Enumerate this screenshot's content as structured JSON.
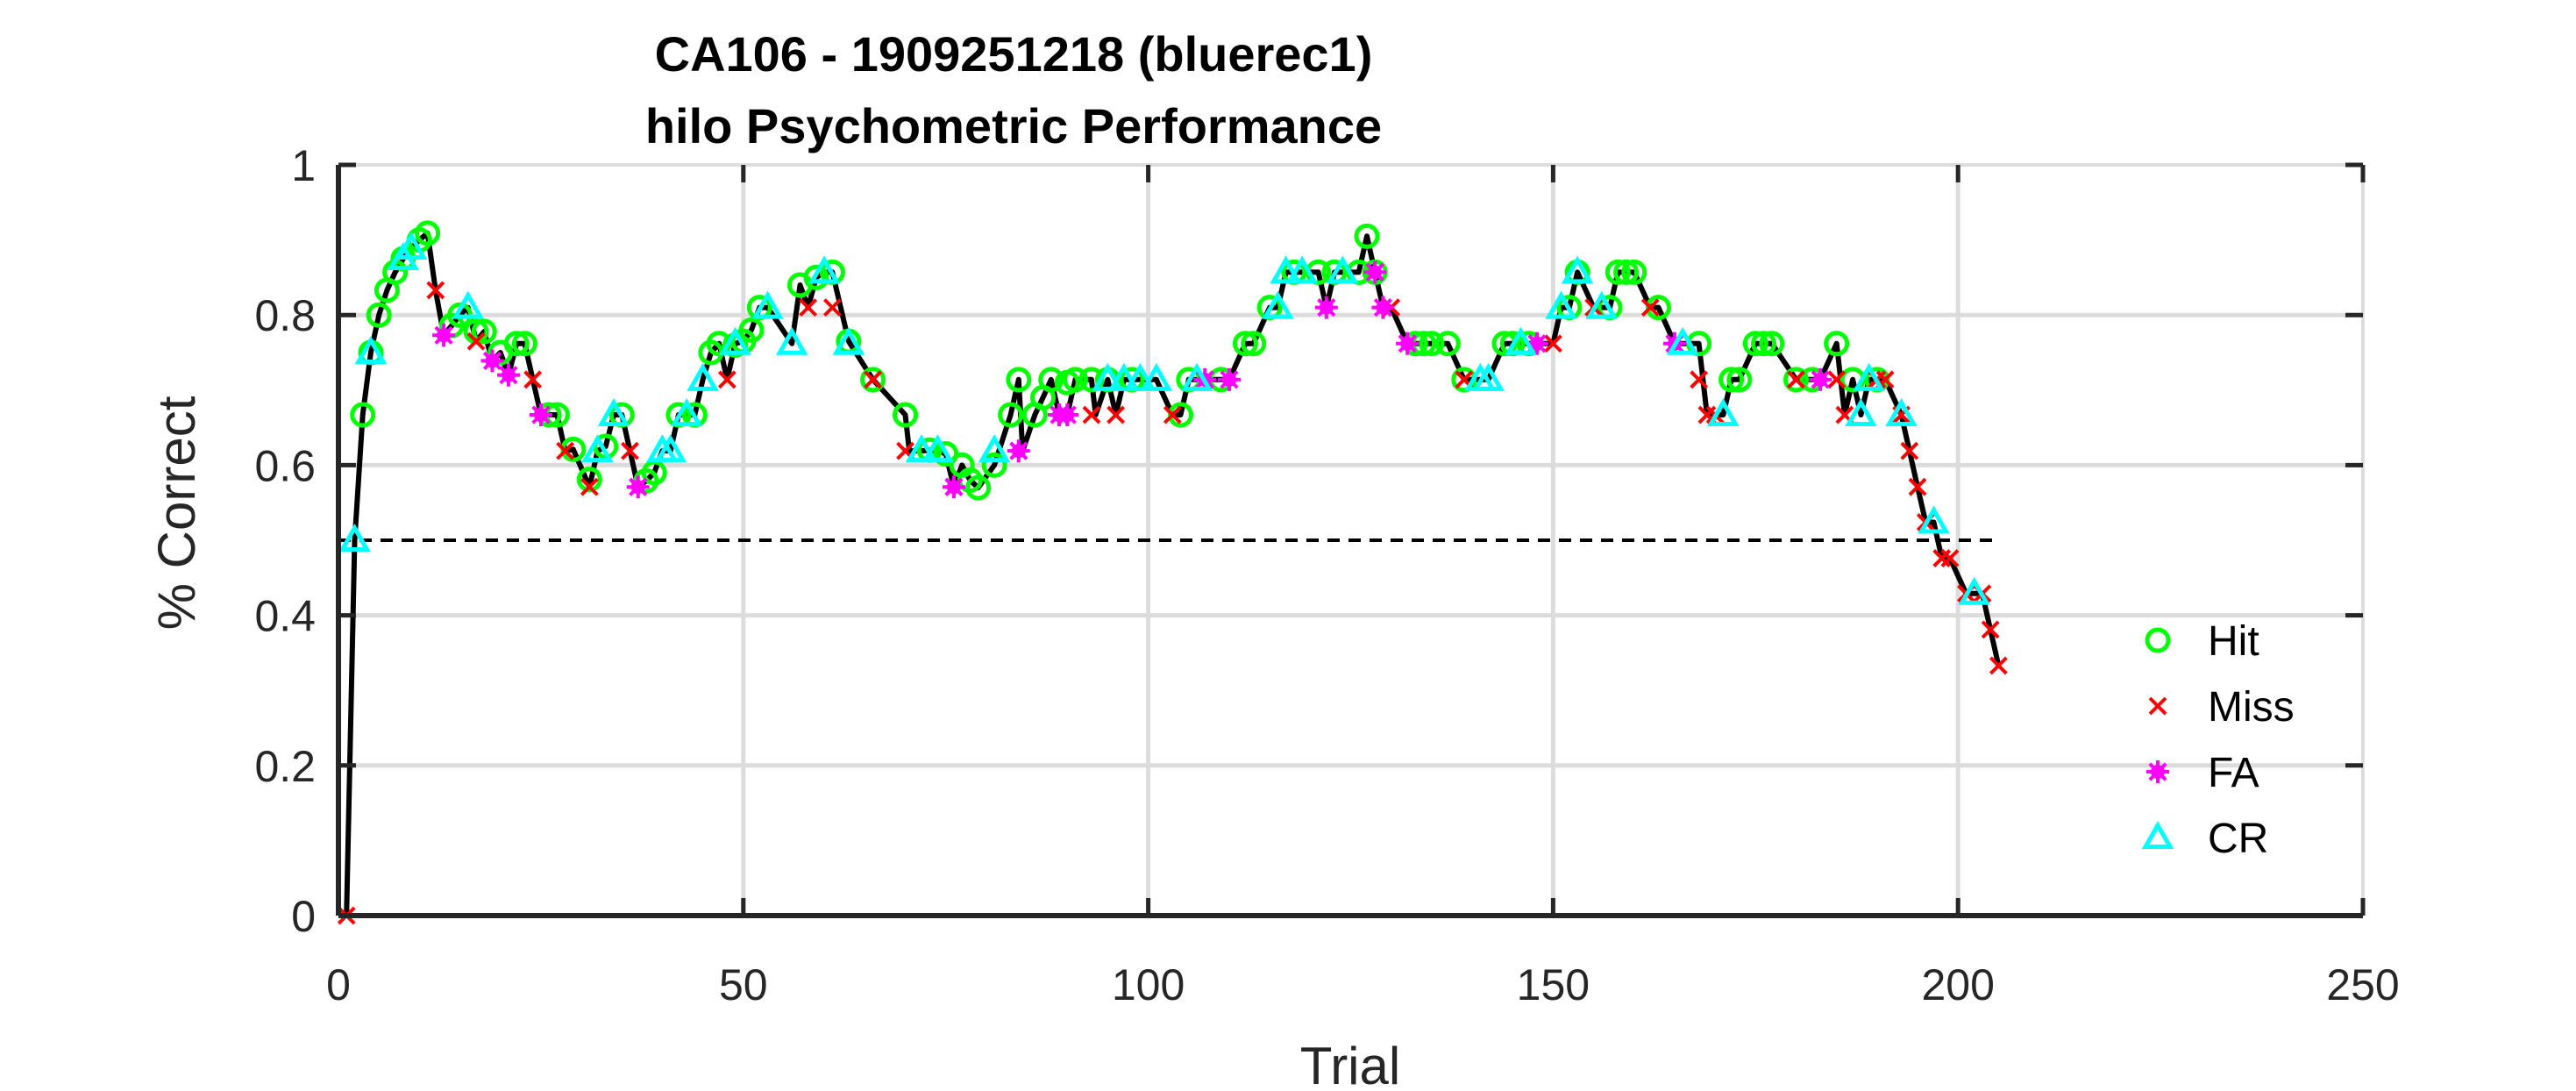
{
  "chart_data": {
    "type": "line",
    "title": "CA106 - 1909251218 (bluerec1)",
    "subtitle": "hilo Psychometric Performance",
    "xlabel": "Trial",
    "ylabel": "% Correct",
    "xlim": [
      0,
      250
    ],
    "ylim": [
      0,
      1
    ],
    "xticks": [
      "0",
      "50",
      "100",
      "150",
      "200",
      "250"
    ],
    "yticks": [
      "0",
      "0.2",
      "0.4",
      "0.6",
      "0.8",
      "1"
    ],
    "grid": true,
    "legend_position": "right",
    "reference_line": {
      "y": 0.5,
      "x_range": [
        0,
        205
      ],
      "style": "dashed"
    },
    "colors": {
      "line": "#000000",
      "Hit": "#00ff00",
      "Miss": "#ff0000",
      "FA": "#ff00ff",
      "CR": "#00ffff"
    },
    "legend": [
      {
        "name": "Hit",
        "marker": "circle"
      },
      {
        "name": "Miss",
        "marker": "x"
      },
      {
        "name": "FA",
        "marker": "star"
      },
      {
        "name": "CR",
        "marker": "triangle"
      }
    ],
    "series": [
      {
        "name": "Hit",
        "points": [
          [
            3,
            0.667
          ],
          [
            4,
            0.75
          ],
          [
            5,
            0.8
          ],
          [
            6,
            0.833
          ],
          [
            7,
            0.857
          ],
          [
            8,
            0.875
          ],
          [
            10,
            0.9
          ],
          [
            11,
            0.909
          ],
          [
            14,
            0.786
          ],
          [
            15,
            0.8
          ],
          [
            17,
            0.778
          ],
          [
            18,
            0.778
          ],
          [
            20,
            0.75
          ],
          [
            22,
            0.762
          ],
          [
            23,
            0.762
          ],
          [
            26,
            0.667
          ],
          [
            27,
            0.667
          ],
          [
            29,
            0.621
          ],
          [
            31,
            0.581
          ],
          [
            33,
            0.625
          ],
          [
            35,
            0.667
          ],
          [
            38,
            0.579
          ],
          [
            39,
            0.59
          ],
          [
            42,
            0.667
          ],
          [
            44,
            0.667
          ],
          [
            46,
            0.75
          ],
          [
            47,
            0.762
          ],
          [
            49,
            0.76
          ],
          [
            50,
            0.765
          ],
          [
            51,
            0.78
          ],
          [
            52,
            0.81
          ],
          [
            57,
            0.84
          ],
          [
            59,
            0.85
          ],
          [
            61,
            0.857
          ],
          [
            63,
            0.765
          ],
          [
            66,
            0.714
          ],
          [
            70,
            0.667
          ],
          [
            73,
            0.62
          ],
          [
            75,
            0.615
          ],
          [
            77,
            0.6
          ],
          [
            78,
            0.58
          ],
          [
            79,
            0.57
          ],
          [
            81,
            0.6
          ],
          [
            83,
            0.667
          ],
          [
            84,
            0.714
          ],
          [
            86,
            0.667
          ],
          [
            87,
            0.69
          ],
          [
            88,
            0.714
          ],
          [
            90,
            0.71
          ],
          [
            91,
            0.714
          ],
          [
            93,
            0.714
          ],
          [
            95,
            0.714
          ],
          [
            98,
            0.714
          ],
          [
            104,
            0.667
          ],
          [
            105,
            0.714
          ],
          [
            109,
            0.714
          ],
          [
            112,
            0.762
          ],
          [
            113,
            0.762
          ],
          [
            115,
            0.81
          ],
          [
            118,
            0.857
          ],
          [
            121,
            0.857
          ],
          [
            123,
            0.857
          ],
          [
            126,
            0.857
          ],
          [
            127,
            0.905
          ],
          [
            128,
            0.857
          ],
          [
            133,
            0.762
          ],
          [
            134,
            0.762
          ],
          [
            135,
            0.762
          ],
          [
            137,
            0.762
          ],
          [
            139,
            0.714
          ],
          [
            144,
            0.762
          ],
          [
            145,
            0.762
          ],
          [
            147,
            0.762
          ],
          [
            152,
            0.81
          ],
          [
            153,
            0.857
          ],
          [
            157,
            0.81
          ],
          [
            158,
            0.857
          ],
          [
            159,
            0.857
          ],
          [
            160,
            0.857
          ],
          [
            163,
            0.81
          ],
          [
            168,
            0.762
          ],
          [
            172,
            0.714
          ],
          [
            173,
            0.714
          ],
          [
            175,
            0.762
          ],
          [
            176,
            0.762
          ],
          [
            177,
            0.762
          ],
          [
            180,
            0.714
          ],
          [
            182,
            0.714
          ],
          [
            185,
            0.762
          ],
          [
            187,
            0.714
          ],
          [
            190,
            0.714
          ]
        ]
      },
      {
        "name": "Miss",
        "points": [
          [
            1,
            0.0
          ],
          [
            12,
            0.833
          ],
          [
            17,
            0.765
          ],
          [
            24,
            0.714
          ],
          [
            28,
            0.619
          ],
          [
            31,
            0.571
          ],
          [
            36,
            0.619
          ],
          [
            37,
            0.571
          ],
          [
            48,
            0.714
          ],
          [
            58,
            0.81
          ],
          [
            61,
            0.81
          ],
          [
            66,
            0.714
          ],
          [
            70,
            0.619
          ],
          [
            76,
            0.571
          ],
          [
            93,
            0.667
          ],
          [
            96,
            0.667
          ],
          [
            103,
            0.667
          ],
          [
            130,
            0.81
          ],
          [
            139,
            0.714
          ],
          [
            150,
            0.762
          ],
          [
            155,
            0.81
          ],
          [
            162,
            0.81
          ],
          [
            168,
            0.714
          ],
          [
            169,
            0.667
          ],
          [
            170,
            0.667
          ],
          [
            180,
            0.714
          ],
          [
            185,
            0.714
          ],
          [
            186,
            0.667
          ],
          [
            190,
            0.714
          ],
          [
            191,
            0.714
          ],
          [
            193,
            0.667
          ],
          [
            194,
            0.619
          ],
          [
            195,
            0.571
          ],
          [
            196,
            0.524
          ],
          [
            198,
            0.476
          ],
          [
            199,
            0.476
          ],
          [
            201,
            0.429
          ],
          [
            203,
            0.429
          ],
          [
            204,
            0.381
          ],
          [
            205,
            0.333
          ]
        ]
      },
      {
        "name": "FA",
        "points": [
          [
            13,
            0.773
          ],
          [
            19,
            0.739
          ],
          [
            21,
            0.72
          ],
          [
            25,
            0.667
          ],
          [
            37,
            0.571
          ],
          [
            76,
            0.571
          ],
          [
            84,
            0.619
          ],
          [
            89,
            0.667
          ],
          [
            90,
            0.667
          ],
          [
            107,
            0.714
          ],
          [
            110,
            0.714
          ],
          [
            122,
            0.81
          ],
          [
            128,
            0.857
          ],
          [
            129,
            0.81
          ],
          [
            132,
            0.762
          ],
          [
            148,
            0.762
          ],
          [
            165,
            0.762
          ],
          [
            183,
            0.714
          ]
        ]
      },
      {
        "name": "CR",
        "points": [
          [
            2,
            0.5
          ],
          [
            4,
            0.75
          ],
          [
            8,
            0.875
          ],
          [
            9,
            0.889
          ],
          [
            16,
            0.81
          ],
          [
            32,
            0.619
          ],
          [
            34,
            0.667
          ],
          [
            40,
            0.619
          ],
          [
            41,
            0.619
          ],
          [
            43,
            0.667
          ],
          [
            45,
            0.714
          ],
          [
            49,
            0.762
          ],
          [
            53,
            0.81
          ],
          [
            56,
            0.762
          ],
          [
            60,
            0.857
          ],
          [
            63,
            0.762
          ],
          [
            72,
            0.619
          ],
          [
            74,
            0.619
          ],
          [
            81,
            0.619
          ],
          [
            95,
            0.714
          ],
          [
            97,
            0.714
          ],
          [
            99,
            0.714
          ],
          [
            101,
            0.714
          ],
          [
            106,
            0.714
          ],
          [
            116,
            0.81
          ],
          [
            117,
            0.857
          ],
          [
            119,
            0.857
          ],
          [
            124,
            0.857
          ],
          [
            141,
            0.714
          ],
          [
            142,
            0.714
          ],
          [
            146,
            0.762
          ],
          [
            151,
            0.81
          ],
          [
            153,
            0.857
          ],
          [
            156,
            0.81
          ],
          [
            166,
            0.762
          ],
          [
            171,
            0.667
          ],
          [
            188,
            0.667
          ],
          [
            189,
            0.714
          ],
          [
            193,
            0.667
          ],
          [
            197,
            0.524
          ],
          [
            202,
            0.429
          ]
        ]
      }
    ],
    "line": [
      [
        1,
        0.0
      ],
      [
        2,
        0.5
      ],
      [
        3,
        0.667
      ],
      [
        4,
        0.75
      ],
      [
        5,
        0.8
      ],
      [
        6,
        0.833
      ],
      [
        7,
        0.857
      ],
      [
        8,
        0.875
      ],
      [
        9,
        0.889
      ],
      [
        10,
        0.9
      ],
      [
        11,
        0.909
      ],
      [
        12,
        0.833
      ],
      [
        13,
        0.773
      ],
      [
        14,
        0.786
      ],
      [
        15,
        0.8
      ],
      [
        16,
        0.81
      ],
      [
        17,
        0.765
      ],
      [
        18,
        0.778
      ],
      [
        19,
        0.739
      ],
      [
        20,
        0.75
      ],
      [
        21,
        0.72
      ],
      [
        22,
        0.762
      ],
      [
        23,
        0.762
      ],
      [
        24,
        0.714
      ],
      [
        25,
        0.667
      ],
      [
        26,
        0.667
      ],
      [
        27,
        0.667
      ],
      [
        28,
        0.619
      ],
      [
        29,
        0.621
      ],
      [
        31,
        0.571
      ],
      [
        32,
        0.619
      ],
      [
        33,
        0.625
      ],
      [
        34,
        0.667
      ],
      [
        35,
        0.667
      ],
      [
        36,
        0.619
      ],
      [
        37,
        0.571
      ],
      [
        38,
        0.579
      ],
      [
        39,
        0.59
      ],
      [
        40,
        0.619
      ],
      [
        41,
        0.619
      ],
      [
        42,
        0.667
      ],
      [
        43,
        0.667
      ],
      [
        44,
        0.667
      ],
      [
        45,
        0.714
      ],
      [
        46,
        0.75
      ],
      [
        47,
        0.762
      ],
      [
        48,
        0.714
      ],
      [
        49,
        0.762
      ],
      [
        50,
        0.765
      ],
      [
        51,
        0.78
      ],
      [
        52,
        0.81
      ],
      [
        53,
        0.81
      ],
      [
        56,
        0.762
      ],
      [
        57,
        0.84
      ],
      [
        58,
        0.81
      ],
      [
        59,
        0.85
      ],
      [
        60,
        0.857
      ],
      [
        61,
        0.857
      ],
      [
        63,
        0.765
      ],
      [
        66,
        0.714
      ],
      [
        70,
        0.667
      ],
      [
        70.5,
        0.619
      ],
      [
        72,
        0.619
      ],
      [
        73,
        0.62
      ],
      [
        74,
        0.619
      ],
      [
        75,
        0.615
      ],
      [
        76,
        0.571
      ],
      [
        77,
        0.6
      ],
      [
        78,
        0.58
      ],
      [
        79,
        0.57
      ],
      [
        81,
        0.6
      ],
      [
        83,
        0.667
      ],
      [
        84,
        0.714
      ],
      [
        84.5,
        0.619
      ],
      [
        86,
        0.667
      ],
      [
        87,
        0.69
      ],
      [
        88,
        0.714
      ],
      [
        89,
        0.667
      ],
      [
        90,
        0.667
      ],
      [
        91,
        0.714
      ],
      [
        93,
        0.714
      ],
      [
        93.5,
        0.667
      ],
      [
        95,
        0.714
      ],
      [
        96,
        0.667
      ],
      [
        97,
        0.714
      ],
      [
        98,
        0.714
      ],
      [
        99,
        0.714
      ],
      [
        101,
        0.714
      ],
      [
        103,
        0.667
      ],
      [
        104,
        0.667
      ],
      [
        105,
        0.714
      ],
      [
        106,
        0.714
      ],
      [
        107,
        0.714
      ],
      [
        109,
        0.714
      ],
      [
        110,
        0.714
      ],
      [
        112,
        0.762
      ],
      [
        113,
        0.762
      ],
      [
        115,
        0.81
      ],
      [
        116,
        0.81
      ],
      [
        117,
        0.857
      ],
      [
        118,
        0.857
      ],
      [
        119,
        0.857
      ],
      [
        121,
        0.857
      ],
      [
        122,
        0.81
      ],
      [
        123,
        0.857
      ],
      [
        124,
        0.857
      ],
      [
        126,
        0.857
      ],
      [
        127,
        0.905
      ],
      [
        128,
        0.857
      ],
      [
        129,
        0.81
      ],
      [
        130,
        0.81
      ],
      [
        132,
        0.762
      ],
      [
        133,
        0.762
      ],
      [
        134,
        0.762
      ],
      [
        135,
        0.762
      ],
      [
        137,
        0.762
      ],
      [
        139,
        0.714
      ],
      [
        141,
        0.714
      ],
      [
        142,
        0.714
      ],
      [
        144,
        0.762
      ],
      [
        145,
        0.762
      ],
      [
        146,
        0.762
      ],
      [
        147,
        0.762
      ],
      [
        148,
        0.762
      ],
      [
        150,
        0.762
      ],
      [
        151,
        0.81
      ],
      [
        152,
        0.81
      ],
      [
        153,
        0.857
      ],
      [
        155,
        0.81
      ],
      [
        156,
        0.81
      ],
      [
        157,
        0.81
      ],
      [
        158,
        0.857
      ],
      [
        159,
        0.857
      ],
      [
        160,
        0.857
      ],
      [
        162,
        0.81
      ],
      [
        163,
        0.81
      ],
      [
        165,
        0.762
      ],
      [
        166,
        0.762
      ],
      [
        168,
        0.762
      ],
      [
        168.5,
        0.714
      ],
      [
        169,
        0.667
      ],
      [
        170,
        0.667
      ],
      [
        171,
        0.667
      ],
      [
        172,
        0.714
      ],
      [
        173,
        0.714
      ],
      [
        175,
        0.762
      ],
      [
        176,
        0.762
      ],
      [
        177,
        0.762
      ],
      [
        180,
        0.714
      ],
      [
        182,
        0.714
      ],
      [
        183,
        0.714
      ],
      [
        185,
        0.762
      ],
      [
        186,
        0.667
      ],
      [
        187,
        0.714
      ],
      [
        188,
        0.667
      ],
      [
        189,
        0.714
      ],
      [
        190,
        0.714
      ],
      [
        191,
        0.714
      ],
      [
        193,
        0.667
      ],
      [
        194,
        0.619
      ],
      [
        195,
        0.571
      ],
      [
        196,
        0.524
      ],
      [
        197,
        0.524
      ],
      [
        198,
        0.476
      ],
      [
        199,
        0.476
      ],
      [
        201,
        0.429
      ],
      [
        202,
        0.429
      ],
      [
        203,
        0.429
      ],
      [
        204,
        0.381
      ],
      [
        205,
        0.333
      ]
    ]
  }
}
